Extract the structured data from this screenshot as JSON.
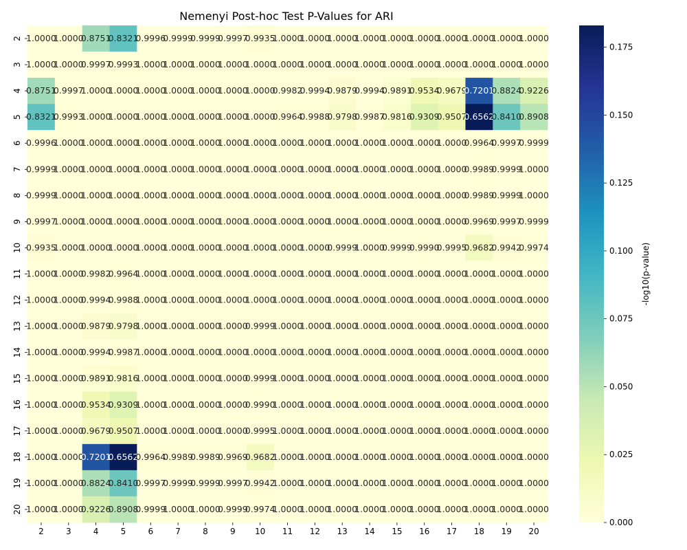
{
  "chart_data": {
    "type": "heatmap",
    "title": "Nemenyi Post-hoc Test P-Values for ARI",
    "xlabel": "",
    "ylabel": "",
    "x_categories": [
      "2",
      "3",
      "4",
      "5",
      "6",
      "7",
      "8",
      "9",
      "10",
      "11",
      "12",
      "13",
      "14",
      "15",
      "16",
      "17",
      "18",
      "19",
      "20"
    ],
    "y_categories": [
      "2",
      "3",
      "4",
      "5",
      "6",
      "7",
      "8",
      "9",
      "10",
      "11",
      "12",
      "13",
      "14",
      "15",
      "16",
      "17",
      "18",
      "19",
      "20"
    ],
    "values": [
      [
        "1.0000",
        "1.0000",
        "0.8751",
        "0.8321",
        "0.9996",
        "0.9999",
        "0.9999",
        "0.9997",
        "0.9935",
        "1.0000",
        "1.0000",
        "1.0000",
        "1.0000",
        "1.0000",
        "1.0000",
        "1.0000",
        "1.0000",
        "1.0000",
        "1.0000"
      ],
      [
        "1.0000",
        "1.0000",
        "0.9997",
        "0.9993",
        "1.0000",
        "1.0000",
        "1.0000",
        "1.0000",
        "1.0000",
        "1.0000",
        "1.0000",
        "1.0000",
        "1.0000",
        "1.0000",
        "1.0000",
        "1.0000",
        "1.0000",
        "1.0000",
        "1.0000"
      ],
      [
        "0.8751",
        "0.9997",
        "1.0000",
        "1.0000",
        "1.0000",
        "1.0000",
        "1.0000",
        "1.0000",
        "1.0000",
        "0.9982",
        "0.9994",
        "0.9879",
        "0.9994",
        "0.9891",
        "0.9534",
        "0.9679",
        "0.7201",
        "0.8824",
        "0.9226"
      ],
      [
        "0.8321",
        "0.9993",
        "1.0000",
        "1.0000",
        "1.0000",
        "1.0000",
        "1.0000",
        "1.0000",
        "1.0000",
        "0.9964",
        "0.9988",
        "0.9798",
        "0.9987",
        "0.9816",
        "0.9309",
        "0.9507",
        "0.6562",
        "0.8410",
        "0.8908"
      ],
      [
        "0.9996",
        "1.0000",
        "1.0000",
        "1.0000",
        "1.0000",
        "1.0000",
        "1.0000",
        "1.0000",
        "1.0000",
        "1.0000",
        "1.0000",
        "1.0000",
        "1.0000",
        "1.0000",
        "1.0000",
        "1.0000",
        "0.9964",
        "0.9997",
        "0.9999"
      ],
      [
        "0.9999",
        "1.0000",
        "1.0000",
        "1.0000",
        "1.0000",
        "1.0000",
        "1.0000",
        "1.0000",
        "1.0000",
        "1.0000",
        "1.0000",
        "1.0000",
        "1.0000",
        "1.0000",
        "1.0000",
        "1.0000",
        "0.9989",
        "0.9999",
        "1.0000"
      ],
      [
        "0.9999",
        "1.0000",
        "1.0000",
        "1.0000",
        "1.0000",
        "1.0000",
        "1.0000",
        "1.0000",
        "1.0000",
        "1.0000",
        "1.0000",
        "1.0000",
        "1.0000",
        "1.0000",
        "1.0000",
        "1.0000",
        "0.9989",
        "0.9999",
        "1.0000"
      ],
      [
        "0.9997",
        "1.0000",
        "1.0000",
        "1.0000",
        "1.0000",
        "1.0000",
        "1.0000",
        "1.0000",
        "1.0000",
        "1.0000",
        "1.0000",
        "1.0000",
        "1.0000",
        "1.0000",
        "1.0000",
        "1.0000",
        "0.9969",
        "0.9997",
        "0.9999"
      ],
      [
        "0.9935",
        "1.0000",
        "1.0000",
        "1.0000",
        "1.0000",
        "1.0000",
        "1.0000",
        "1.0000",
        "1.0000",
        "1.0000",
        "1.0000",
        "0.9999",
        "1.0000",
        "0.9999",
        "0.9990",
        "0.9995",
        "0.9682",
        "0.9942",
        "0.9974"
      ],
      [
        "1.0000",
        "1.0000",
        "0.9982",
        "0.9964",
        "1.0000",
        "1.0000",
        "1.0000",
        "1.0000",
        "1.0000",
        "1.0000",
        "1.0000",
        "1.0000",
        "1.0000",
        "1.0000",
        "1.0000",
        "1.0000",
        "1.0000",
        "1.0000",
        "1.0000"
      ],
      [
        "1.0000",
        "1.0000",
        "0.9994",
        "0.9988",
        "1.0000",
        "1.0000",
        "1.0000",
        "1.0000",
        "1.0000",
        "1.0000",
        "1.0000",
        "1.0000",
        "1.0000",
        "1.0000",
        "1.0000",
        "1.0000",
        "1.0000",
        "1.0000",
        "1.0000"
      ],
      [
        "1.0000",
        "1.0000",
        "0.9879",
        "0.9798",
        "1.0000",
        "1.0000",
        "1.0000",
        "1.0000",
        "0.9999",
        "1.0000",
        "1.0000",
        "1.0000",
        "1.0000",
        "1.0000",
        "1.0000",
        "1.0000",
        "1.0000",
        "1.0000",
        "1.0000"
      ],
      [
        "1.0000",
        "1.0000",
        "0.9994",
        "0.9987",
        "1.0000",
        "1.0000",
        "1.0000",
        "1.0000",
        "1.0000",
        "1.0000",
        "1.0000",
        "1.0000",
        "1.0000",
        "1.0000",
        "1.0000",
        "1.0000",
        "1.0000",
        "1.0000",
        "1.0000"
      ],
      [
        "1.0000",
        "1.0000",
        "0.9891",
        "0.9816",
        "1.0000",
        "1.0000",
        "1.0000",
        "1.0000",
        "0.9999",
        "1.0000",
        "1.0000",
        "1.0000",
        "1.0000",
        "1.0000",
        "1.0000",
        "1.0000",
        "1.0000",
        "1.0000",
        "1.0000"
      ],
      [
        "1.0000",
        "1.0000",
        "0.9534",
        "0.9309",
        "1.0000",
        "1.0000",
        "1.0000",
        "1.0000",
        "0.9990",
        "1.0000",
        "1.0000",
        "1.0000",
        "1.0000",
        "1.0000",
        "1.0000",
        "1.0000",
        "1.0000",
        "1.0000",
        "1.0000"
      ],
      [
        "1.0000",
        "1.0000",
        "0.9679",
        "0.9507",
        "1.0000",
        "1.0000",
        "1.0000",
        "1.0000",
        "0.9995",
        "1.0000",
        "1.0000",
        "1.0000",
        "1.0000",
        "1.0000",
        "1.0000",
        "1.0000",
        "1.0000",
        "1.0000",
        "1.0000"
      ],
      [
        "1.0000",
        "1.0000",
        "0.7201",
        "0.6562",
        "0.9964",
        "0.9989",
        "0.9989",
        "0.9969",
        "0.9682",
        "1.0000",
        "1.0000",
        "1.0000",
        "1.0000",
        "1.0000",
        "1.0000",
        "1.0000",
        "1.0000",
        "1.0000",
        "1.0000"
      ],
      [
        "1.0000",
        "1.0000",
        "0.8824",
        "0.8410",
        "0.9997",
        "0.9999",
        "0.9999",
        "0.9997",
        "0.9942",
        "1.0000",
        "1.0000",
        "1.0000",
        "1.0000",
        "1.0000",
        "1.0000",
        "1.0000",
        "1.0000",
        "1.0000",
        "1.0000"
      ],
      [
        "1.0000",
        "1.0000",
        "0.9226",
        "0.8908",
        "0.9999",
        "1.0000",
        "1.0000",
        "0.9999",
        "0.9974",
        "1.0000",
        "1.0000",
        "1.0000",
        "1.0000",
        "1.0000",
        "1.0000",
        "1.0000",
        "1.0000",
        "1.0000",
        "1.0000"
      ]
    ],
    "colorbar": {
      "label": "-log10(p-value)",
      "range": [
        0,
        0.183
      ],
      "ticks": [
        "0.000",
        "0.025",
        "0.050",
        "0.075",
        "0.100",
        "0.125",
        "0.150",
        "0.175"
      ],
      "colormap": [
        "#ffffd9",
        "#edf8b1",
        "#c7e9b4",
        "#7fcdbb",
        "#41b6c4",
        "#1d91c0",
        "#225ea8",
        "#253494",
        "#081d58"
      ]
    },
    "grid": false
  }
}
